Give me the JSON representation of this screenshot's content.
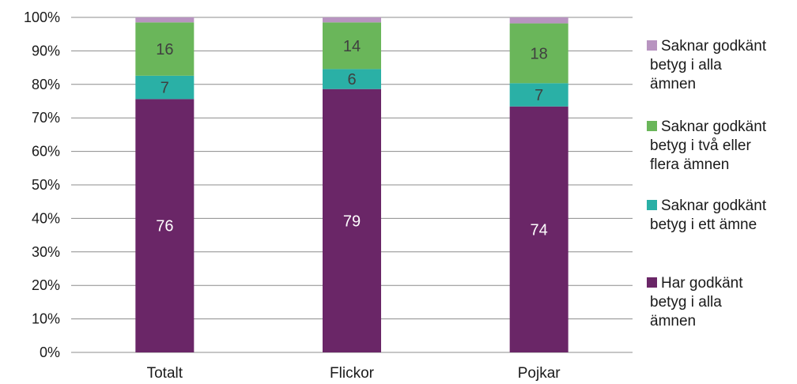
{
  "chart_data": {
    "type": "bar",
    "stacked": true,
    "normalized": true,
    "categories": [
      "Totalt",
      "Flickor",
      "Pojkar"
    ],
    "series": [
      {
        "name": "Har godkänt betyg i alla ämnen",
        "values": [
          76,
          79,
          74
        ],
        "labels": [
          "76",
          "79",
          "74"
        ],
        "color": "#6a2667",
        "label_color": "#ffffff"
      },
      {
        "name": "Saknar godkänt betyg i ett ämne",
        "values": [
          7,
          6,
          7
        ],
        "labels": [
          "7",
          "6",
          "7"
        ],
        "color": "#2ab0a6",
        "label_color": "#404040"
      },
      {
        "name": "Saknar godkänt betyg i två eller flera ämnen",
        "values": [
          16,
          14,
          18
        ],
        "labels": [
          "16",
          "14",
          "18"
        ],
        "color": "#6ab65a",
        "label_color": "#404040"
      },
      {
        "name": "Saknar godkänt betyg i alla ämnen",
        "values": [
          1.5,
          1.5,
          1.8
        ],
        "labels": [
          "",
          "",
          ""
        ],
        "color": "#b894c0",
        "label_color": "#404040"
      }
    ],
    "legend": {
      "position": "right",
      "order": [
        3,
        2,
        1,
        0
      ],
      "lines": [
        [
          "Saknar godkänt",
          "betyg i alla",
          "ämnen"
        ],
        [
          "Saknar godkänt",
          "betyg i två eller",
          "flera ämnen"
        ],
        [
          "Saknar godkänt",
          "betyg i ett ämne"
        ],
        [
          "Har godkänt",
          "betyg i alla",
          "ämnen"
        ]
      ]
    },
    "yaxis": {
      "ylim": [
        0,
        100
      ],
      "ticks": [
        0,
        10,
        20,
        30,
        40,
        50,
        60,
        70,
        80,
        90,
        100
      ],
      "tick_labels": [
        "0%",
        "10%",
        "20%",
        "30%",
        "40%",
        "50%",
        "60%",
        "70%",
        "80%",
        "90%",
        "100%"
      ]
    },
    "grid": true,
    "gridline_color": "#8c8c8c",
    "title": "",
    "xlabel": "",
    "ylabel": ""
  }
}
